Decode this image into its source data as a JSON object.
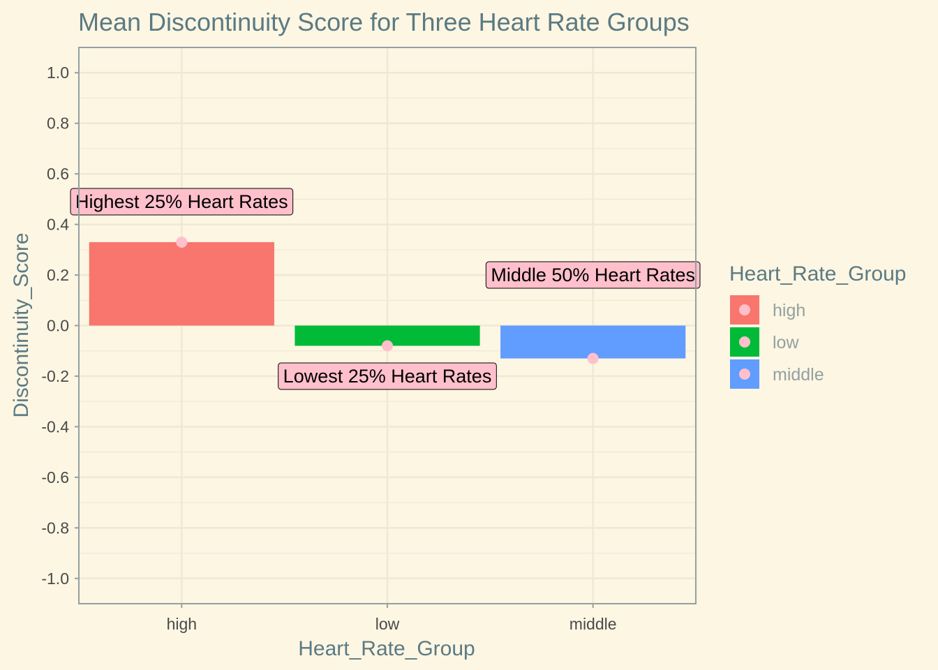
{
  "chart_data": {
    "type": "bar",
    "title": "Mean Discontinuity Score for Three Heart Rate Groups",
    "xlabel": "Heart_Rate_Group",
    "ylabel": "Discontinuity_Score",
    "categories": [
      "high",
      "low",
      "middle"
    ],
    "values": [
      0.33,
      -0.08,
      -0.13
    ],
    "ylim": [
      -1.1,
      1.1
    ],
    "yticks": [
      "1.0",
      "0.8",
      "0.6",
      "0.4",
      "0.2",
      "0.0",
      "-0.2",
      "-0.4",
      "-0.6",
      "-0.8",
      "-1.0"
    ],
    "ytick_values": [
      1.0,
      0.8,
      0.6,
      0.4,
      0.2,
      0.0,
      -0.2,
      -0.4,
      -0.6,
      -0.8,
      -1.0
    ],
    "grid": true,
    "legend": {
      "title": "Heart_Rate_Group",
      "position": "right",
      "items": [
        "high",
        "low",
        "middle"
      ]
    },
    "annotations": [
      {
        "category": "high",
        "y": 0.49,
        "text": "Highest 25% Heart Rates"
      },
      {
        "category": "low",
        "y": -0.2,
        "text": "Lowest 25% Heart Rates"
      },
      {
        "category": "middle",
        "y": 0.2,
        "text": "Middle 50% Heart Rates"
      }
    ],
    "colors": {
      "high": "#f8766d",
      "low": "#00ba38",
      "middle": "#619cff",
      "point": "#ffc0cb",
      "label_fill": "#ffc0cb",
      "background": "#fdf6e3",
      "grid": "#eee8d5",
      "panel_border": "#93a1a1"
    }
  }
}
